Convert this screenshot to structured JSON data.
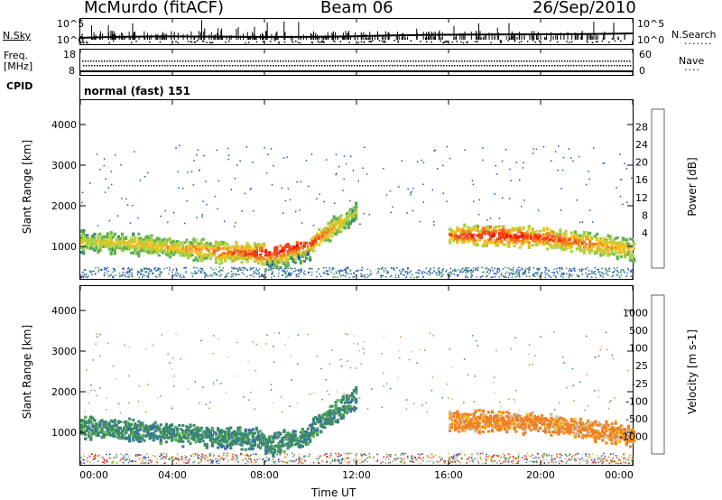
{
  "header": {
    "station": "McMurdo (fitACF)",
    "beam": "Beam 06",
    "date": "26/Sep/2010"
  },
  "top_panels": {
    "nsky_label": "N.Sky",
    "nsky_ticks": [
      "10^5",
      "10^0"
    ],
    "nsearch_label": "N.Search",
    "nsearch_ticks": [
      "10^5",
      "10^0"
    ],
    "freq_label_1": "Freq.",
    "freq_label_2": "[MHz]",
    "freq_ticks": [
      "18",
      "8"
    ],
    "nave_label": "Nave",
    "nave_ticks": [
      "60",
      "0"
    ],
    "cpid_label": "CPID",
    "cpid_value": "normal (fast) 151"
  },
  "chart_data": [
    {
      "type": "heatmap",
      "name": "power",
      "ylabel": "Slant Range [km]",
      "ylim": [
        200,
        4600
      ],
      "yticks": [
        "1000",
        "2000",
        "3000",
        "4000"
      ],
      "colorbar_label": "Power [dB]",
      "colorbar_ticks": [
        "28",
        "24",
        "20",
        "16",
        "12",
        "8",
        "4"
      ],
      "colors": [
        "#0000ff",
        "#2050c0",
        "#3a8a6a",
        "#5fb050",
        "#a8d040",
        "#f0c020",
        "#f08020",
        "#f04010",
        "#ff0000"
      ],
      "x": [
        0,
        2,
        4,
        6,
        8,
        10,
        12,
        14,
        16,
        18,
        20,
        22,
        24
      ],
      "band_center_km": [
        1150,
        1100,
        1000,
        900,
        850,
        1100,
        1900,
        null,
        1300,
        1300,
        1250,
        1100,
        950
      ],
      "peak_db": [
        16,
        18,
        20,
        24,
        30,
        28,
        14,
        null,
        26,
        30,
        28,
        24,
        18
      ]
    },
    {
      "type": "heatmap",
      "name": "velocity",
      "ylabel": "Slant Range [km]",
      "ylim": [
        200,
        4600
      ],
      "yticks": [
        "1000",
        "2000",
        "3000",
        "4000"
      ],
      "colorbar_label": "Velocity [m s-1]",
      "colorbar_ticks": [
        "1000",
        "500",
        "100",
        "25",
        "-25",
        "-100",
        "-500",
        "-1000"
      ],
      "colors": [
        "#1030c0",
        "#3a6ab0",
        "#3a8a6a",
        "#5fb050",
        "#c0c0c0",
        "#f0c020",
        "#f08020",
        "#f04010",
        "#ff0000"
      ],
      "x": [
        0,
        2,
        4,
        6,
        8,
        10,
        12,
        14,
        16,
        18,
        20,
        22,
        24
      ],
      "band_center_km": [
        1150,
        1100,
        1000,
        900,
        850,
        1100,
        1900,
        null,
        1300,
        1300,
        1250,
        1100,
        950
      ],
      "velocity_ms": [
        100,
        100,
        100,
        100,
        100,
        100,
        50,
        null,
        -100,
        -100,
        -100,
        -100,
        -100
      ]
    }
  ],
  "xaxis": {
    "ticks": [
      "00:00",
      "04:00",
      "08:00",
      "12:00",
      "16:00",
      "20:00",
      "00:00"
    ],
    "label": "Time UT"
  }
}
